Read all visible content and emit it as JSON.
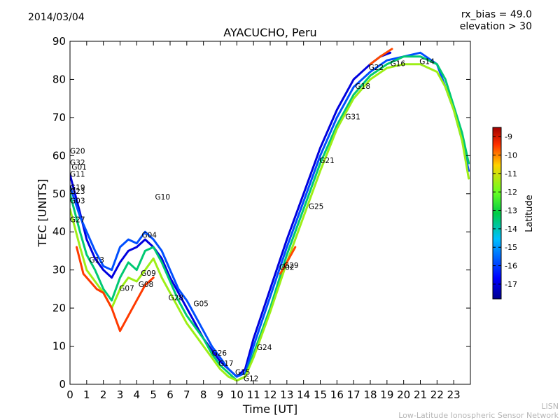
{
  "header": {
    "date": "2014/03/04",
    "rx_bias": "rx_bias = 49.0",
    "elevation": "elevation > 30"
  },
  "footer": {
    "line1": "LISN",
    "line2": "Low-Latitude Ionospheric Sensor Network"
  },
  "chart_data": {
    "type": "scatter",
    "title": "AYACUCHO, Peru",
    "xlabel": "Time [UT]",
    "ylabel": "TEC [UNITS]",
    "xlim": [
      0,
      24
    ],
    "ylim": [
      0,
      90
    ],
    "xticks": [
      "0",
      "1",
      "2",
      "3",
      "4",
      "5",
      "6",
      "7",
      "8",
      "9",
      "10",
      "11",
      "12",
      "13",
      "14",
      "15",
      "16",
      "17",
      "18",
      "19",
      "20",
      "21",
      "22",
      "23"
    ],
    "yticks": [
      "0",
      "10",
      "20",
      "30",
      "40",
      "50",
      "60",
      "70",
      "80",
      "90"
    ],
    "colorbar": {
      "label": "Latitude",
      "range": [
        -17.8,
        -8.5
      ],
      "ticks": [
        "-9",
        "-10",
        "-11",
        "-12",
        "-13",
        "-14",
        "-15",
        "-16",
        "-17"
      ],
      "tick_values": [
        -9,
        -10,
        -11,
        -12,
        -13,
        -14,
        -15,
        -16,
        -17
      ]
    },
    "series": [
      {
        "name": "day-blue",
        "lat": -17.0,
        "x": [
          0,
          0.6,
          1,
          1.5,
          2,
          2.5,
          3,
          3.5,
          4,
          4.5,
          5,
          5.5,
          6,
          6.5,
          7,
          7.5,
          8,
          8.5,
          9,
          9.5,
          10,
          10.5,
          11,
          12,
          13,
          14,
          15,
          16,
          17,
          18,
          18.6,
          19.2
        ],
        "y": [
          55,
          45,
          38,
          33,
          30,
          28,
          32,
          35,
          36,
          38,
          36,
          33,
          28,
          24,
          20,
          16,
          12,
          9,
          6,
          4,
          2,
          4,
          12,
          25,
          38,
          50,
          62,
          72,
          80,
          84,
          86,
          87
        ]
      },
      {
        "name": "day-cyan",
        "lat": -15.8,
        "x": [
          0,
          0.6,
          1,
          1.5,
          2,
          2.5,
          3,
          3.5,
          4,
          4.5,
          5,
          5.5,
          6,
          6.5,
          7,
          7.5,
          8,
          8.5,
          9,
          9.5,
          10,
          10.5,
          11,
          12,
          13,
          14,
          15,
          16,
          17,
          18,
          19,
          20,
          21,
          22,
          22.5,
          23,
          23.5,
          23.9
        ],
        "y": [
          52,
          44,
          40,
          35,
          31,
          30,
          36,
          38,
          37,
          40,
          38,
          35,
          30,
          25,
          22,
          18,
          14,
          10,
          7,
          4,
          2,
          3,
          10,
          23,
          36,
          48,
          60,
          70,
          78,
          82,
          85,
          86,
          87,
          84,
          78,
          72,
          64,
          56
        ]
      },
      {
        "name": "day-green",
        "lat": -13.5,
        "x": [
          0,
          0.6,
          1,
          1.5,
          2,
          2.5,
          3,
          3.5,
          4,
          4.5,
          5,
          5.5,
          6,
          6.5,
          7,
          7.5,
          8,
          8.5,
          9,
          9.5,
          10,
          10.5,
          11,
          12,
          13,
          14,
          15,
          16,
          17,
          18,
          19,
          20,
          21,
          22,
          22.5,
          23,
          23.5,
          23.9
        ],
        "y": [
          50,
          40,
          34,
          30,
          25,
          22,
          28,
          32,
          30,
          35,
          36,
          32,
          27,
          22,
          18,
          15,
          12,
          8,
          5,
          3,
          1,
          2,
          8,
          20,
          34,
          46,
          58,
          68,
          76,
          81,
          84,
          86,
          86,
          84,
          80,
          73,
          66,
          58
        ]
      },
      {
        "name": "day-yellow",
        "lat": -11.5,
        "x": [
          0,
          0.6,
          1,
          1.5,
          2,
          2.5,
          3,
          3.5,
          4,
          4.5,
          5,
          5.5,
          6,
          6.5,
          7,
          7.5,
          8,
          8.5,
          9,
          9.5,
          10,
          10.5,
          11,
          12,
          13,
          14,
          15,
          16,
          17,
          18,
          19,
          20,
          21,
          22,
          22.5,
          23,
          23.5,
          23.9
        ],
        "y": [
          46,
          36,
          30,
          27,
          24,
          20,
          25,
          28,
          27,
          30,
          33,
          28,
          24,
          20,
          16,
          13,
          10,
          7,
          4,
          2,
          1,
          2,
          7,
          19,
          32,
          44,
          56,
          67,
          75,
          80,
          83,
          84,
          84,
          82,
          78,
          72,
          64,
          54
        ]
      },
      {
        "name": "day-red",
        "lat": -9.5,
        "x": [
          0.4,
          0.8,
          1.2,
          1.6,
          2,
          2.5,
          3,
          3.5,
          4,
          4.5,
          5
        ],
        "y": [
          36,
          29,
          27,
          25,
          24,
          20,
          14,
          18,
          22,
          26,
          28
        ]
      },
      {
        "name": "late-red",
        "lat": -9.6,
        "x": [
          12.6,
          13,
          13.5
        ],
        "y": [
          29,
          32,
          36
        ]
      },
      {
        "name": "late-red-2",
        "lat": -9.6,
        "x": [
          18,
          18.6,
          19.3
        ],
        "y": [
          84,
          86,
          88
        ]
      }
    ],
    "satellite_labels": [
      {
        "label": "G20",
        "x": 0.0,
        "y": 60.5
      },
      {
        "label": "G32",
        "x": 0.0,
        "y": 57.5
      },
      {
        "label": "G01",
        "x": 0.1,
        "y": 56.3
      },
      {
        "label": "G11",
        "x": 0.0,
        "y": 54.5
      },
      {
        "label": "G19",
        "x": 0.0,
        "y": 51.0
      },
      {
        "label": "G23",
        "x": 0.0,
        "y": 50.0
      },
      {
        "label": "G03",
        "x": 0.0,
        "y": 47.5
      },
      {
        "label": "G27",
        "x": 0.0,
        "y": 42.5
      },
      {
        "label": "G13",
        "x": 1.15,
        "y": 32.0
      },
      {
        "label": "G07",
        "x": 2.95,
        "y": 24.5
      },
      {
        "label": "G08",
        "x": 4.1,
        "y": 25.5
      },
      {
        "label": "G09",
        "x": 4.25,
        "y": 28.5
      },
      {
        "label": "G04",
        "x": 4.3,
        "y": 38.5
      },
      {
        "label": "G10",
        "x": 5.1,
        "y": 48.5
      },
      {
        "label": "G28",
        "x": 5.9,
        "y": 22.0
      },
      {
        "label": "G05",
        "x": 7.4,
        "y": 20.5
      },
      {
        "label": "G26",
        "x": 8.5,
        "y": 7.5
      },
      {
        "label": "G17",
        "x": 8.9,
        "y": 4.8
      },
      {
        "label": "G15",
        "x": 9.9,
        "y": 2.5
      },
      {
        "label": "G12",
        "x": 10.4,
        "y": 0.8
      },
      {
        "label": "G24",
        "x": 11.2,
        "y": 9.0
      },
      {
        "label": "G02",
        "x": 12.55,
        "y": 30.0
      },
      {
        "label": "G29",
        "x": 12.8,
        "y": 30.5
      },
      {
        "label": "G25",
        "x": 14.3,
        "y": 46.0
      },
      {
        "label": "G21",
        "x": 14.95,
        "y": 58.0
      },
      {
        "label": "G31",
        "x": 16.5,
        "y": 69.5
      },
      {
        "label": "G18",
        "x": 17.1,
        "y": 77.5
      },
      {
        "label": "G22",
        "x": 17.9,
        "y": 82.5
      },
      {
        "label": "G16",
        "x": 19.2,
        "y": 83.5
      },
      {
        "label": "G14",
        "x": 20.95,
        "y": 84.0
      }
    ]
  }
}
